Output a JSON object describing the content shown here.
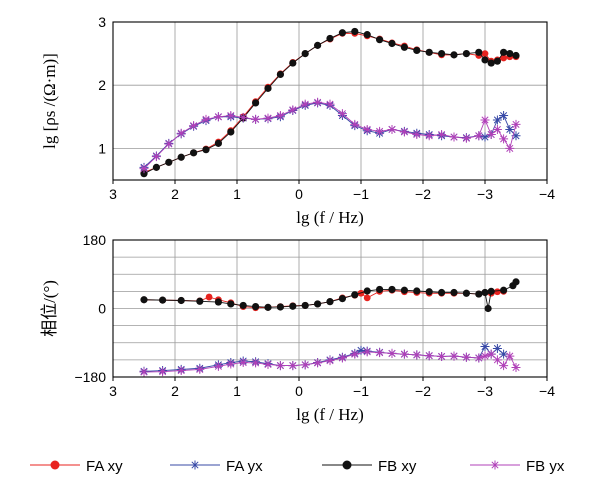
{
  "chart_data": [
    {
      "type": "line",
      "xlabel": "lg (f / Hz)",
      "ylabel": "lg [ρs /(Ω·m)]",
      "xlim": [
        3,
        -4
      ],
      "ylim": [
        0.5,
        3
      ],
      "xticks": [
        "3",
        "2",
        "1",
        "0",
        "−1",
        "−2",
        "−3",
        "−4"
      ],
      "yticks": [
        "1",
        "2",
        "3"
      ],
      "grid": true,
      "series": [
        {
          "name": "FA xy",
          "color": "#e8231f",
          "marker": "dot",
          "x": [
            2.5,
            2.3,
            2.1,
            1.9,
            1.7,
            1.5,
            1.3,
            1.1,
            0.9,
            0.7,
            0.5,
            0.3,
            0.1,
            -0.1,
            -0.3,
            -0.5,
            -0.7,
            -0.9,
            -1.1,
            -1.3,
            -1.5,
            -1.7,
            -1.9,
            -2.1,
            -2.3,
            -2.5,
            -2.7,
            -2.9,
            -3.0,
            -3.1,
            -3.2,
            -3.3,
            -3.4,
            -3.5
          ],
          "y": [
            0.62,
            0.7,
            0.78,
            0.86,
            0.93,
            0.99,
            1.1,
            1.28,
            1.5,
            1.74,
            1.97,
            2.18,
            2.36,
            2.5,
            2.63,
            2.73,
            2.82,
            2.82,
            2.78,
            2.73,
            2.67,
            2.62,
            2.56,
            2.52,
            2.48,
            2.48,
            2.5,
            2.47,
            2.5,
            2.38,
            2.4,
            2.43,
            2.45,
            2.45
          ]
        },
        {
          "name": "FA yx",
          "color": "#3748a6",
          "marker": "star",
          "x": [
            2.5,
            2.3,
            2.1,
            1.9,
            1.7,
            1.5,
            1.3,
            1.1,
            0.9,
            0.7,
            0.5,
            0.3,
            0.1,
            -0.1,
            -0.3,
            -0.5,
            -0.7,
            -0.9,
            -1.1,
            -1.3,
            -1.5,
            -1.7,
            -1.9,
            -2.1,
            -2.3,
            -2.5,
            -2.7,
            -2.9,
            -3.0,
            -3.1,
            -3.2,
            -3.3,
            -3.4,
            -3.5
          ],
          "y": [
            0.7,
            0.88,
            1.08,
            1.23,
            1.35,
            1.44,
            1.5,
            1.5,
            1.48,
            1.46,
            1.47,
            1.5,
            1.6,
            1.68,
            1.72,
            1.68,
            1.52,
            1.36,
            1.28,
            1.24,
            1.3,
            1.27,
            1.24,
            1.22,
            1.2,
            1.18,
            1.17,
            1.2,
            1.18,
            1.22,
            1.45,
            1.52,
            1.3,
            1.2
          ]
        },
        {
          "name": "FB xy",
          "color": "#111111",
          "marker": "dot",
          "x": [
            2.5,
            2.3,
            2.1,
            1.9,
            1.7,
            1.5,
            1.3,
            1.1,
            0.9,
            0.7,
            0.5,
            0.3,
            0.1,
            -0.1,
            -0.3,
            -0.5,
            -0.7,
            -0.9,
            -1.1,
            -1.3,
            -1.5,
            -1.7,
            -1.9,
            -2.1,
            -2.3,
            -2.5,
            -2.7,
            -2.9,
            -3.0,
            -3.1,
            -3.2,
            -3.3,
            -3.4,
            -3.5
          ],
          "y": [
            0.6,
            0.7,
            0.78,
            0.86,
            0.93,
            0.98,
            1.08,
            1.26,
            1.48,
            1.72,
            1.95,
            2.17,
            2.35,
            2.5,
            2.63,
            2.74,
            2.83,
            2.85,
            2.8,
            2.72,
            2.66,
            2.6,
            2.55,
            2.52,
            2.5,
            2.48,
            2.5,
            2.52,
            2.4,
            2.35,
            2.38,
            2.52,
            2.5,
            2.47
          ]
        },
        {
          "name": "FB yx",
          "color": "#b040b8",
          "marker": "star",
          "x": [
            2.5,
            2.3,
            2.1,
            1.9,
            1.7,
            1.5,
            1.3,
            1.1,
            0.9,
            0.7,
            0.5,
            0.3,
            0.1,
            -0.1,
            -0.3,
            -0.5,
            -0.7,
            -0.9,
            -1.1,
            -1.3,
            -1.5,
            -1.7,
            -1.9,
            -2.1,
            -2.3,
            -2.5,
            -2.7,
            -2.9,
            -3.0,
            -3.1,
            -3.2,
            -3.3,
            -3.4,
            -3.5
          ],
          "y": [
            0.68,
            0.87,
            1.07,
            1.24,
            1.36,
            1.46,
            1.5,
            1.52,
            1.49,
            1.46,
            1.48,
            1.52,
            1.61,
            1.7,
            1.73,
            1.7,
            1.55,
            1.38,
            1.3,
            1.27,
            1.3,
            1.26,
            1.22,
            1.2,
            1.22,
            1.18,
            1.16,
            1.2,
            1.45,
            1.22,
            1.3,
            1.15,
            1.0,
            1.38
          ]
        }
      ]
    },
    {
      "type": "line",
      "xlabel": "lg (f / Hz)",
      "ylabel": "相位/(°)",
      "xlim": [
        3,
        -4
      ],
      "ylim": [
        -180,
        180
      ],
      "xticks": [
        "3",
        "2",
        "1",
        "0",
        "−1",
        "−2",
        "−3",
        "−4"
      ],
      "yticks": [
        "−180",
        "0",
        "180"
      ],
      "grid": true,
      "series": [
        {
          "name": "FA xy",
          "color": "#e8231f",
          "marker": "dot",
          "x": [
            2.5,
            2.2,
            1.9,
            1.6,
            1.45,
            1.3,
            1.1,
            0.9,
            0.7,
            0.5,
            0.3,
            0.1,
            -0.1,
            -0.3,
            -0.5,
            -0.7,
            -0.9,
            -1.0,
            -1.1,
            -1.3,
            -1.5,
            -1.7,
            -1.9,
            -2.1,
            -2.3,
            -2.5,
            -2.7,
            -2.9,
            -3.0,
            -3.1,
            -3.2,
            -3.3
          ],
          "y": [
            23,
            22,
            21,
            20,
            30,
            23,
            15,
            5,
            2,
            3,
            5,
            7,
            8,
            12,
            18,
            28,
            35,
            40,
            28,
            45,
            48,
            44,
            42,
            40,
            40,
            40,
            40,
            38,
            42,
            40,
            44,
            45
          ]
        },
        {
          "name": "FA yx",
          "color": "#3748a6",
          "marker": "star",
          "x": [
            2.5,
            2.2,
            1.9,
            1.6,
            1.3,
            1.1,
            0.9,
            0.7,
            0.5,
            0.3,
            0.1,
            -0.1,
            -0.3,
            -0.5,
            -0.7,
            -0.9,
            -1.0,
            -1.1,
            -1.3,
            -1.5,
            -1.7,
            -1.9,
            -2.1,
            -2.3,
            -2.5,
            -2.7,
            -2.9,
            -3.0,
            -3.1,
            -3.2,
            -3.3
          ],
          "y": [
            -165,
            -163,
            -160,
            -157,
            -148,
            -142,
            -138,
            -140,
            -145,
            -150,
            -150,
            -148,
            -142,
            -135,
            -128,
            -118,
            -110,
            -112,
            -115,
            -118,
            -120,
            -122,
            -124,
            -126,
            -125,
            -128,
            -130,
            -100,
            -120,
            -105,
            -120
          ]
        },
        {
          "name": "FB xy",
          "color": "#111111",
          "marker": "dot",
          "x": [
            2.5,
            2.2,
            1.9,
            1.6,
            1.3,
            1.1,
            0.9,
            0.7,
            0.5,
            0.3,
            0.1,
            -0.1,
            -0.3,
            -0.5,
            -0.7,
            -0.9,
            -1.1,
            -1.3,
            -1.5,
            -1.7,
            -1.9,
            -2.1,
            -2.3,
            -2.5,
            -2.7,
            -2.9,
            -3.0,
            -3.05,
            -3.1,
            -3.3,
            -3.45,
            -3.5
          ],
          "y": [
            23,
            22,
            21,
            19,
            17,
            12,
            8,
            5,
            3,
            4,
            6,
            8,
            12,
            18,
            26,
            36,
            46,
            50,
            50,
            48,
            46,
            44,
            42,
            42,
            40,
            38,
            42,
            0,
            45,
            48,
            60,
            70
          ]
        },
        {
          "name": "FB yx",
          "color": "#b040b8",
          "marker": "star",
          "x": [
            2.5,
            2.2,
            1.9,
            1.6,
            1.3,
            1.1,
            0.9,
            0.7,
            0.5,
            0.3,
            0.1,
            -0.1,
            -0.3,
            -0.5,
            -0.7,
            -0.9,
            -1.1,
            -1.3,
            -1.5,
            -1.7,
            -1.9,
            -2.1,
            -2.3,
            -2.5,
            -2.7,
            -2.9,
            -3.0,
            -3.1,
            -3.2,
            -3.3,
            -3.4,
            -3.5
          ],
          "y": [
            -167,
            -166,
            -163,
            -160,
            -152,
            -146,
            -142,
            -143,
            -147,
            -150,
            -150,
            -148,
            -143,
            -137,
            -130,
            -120,
            -114,
            -116,
            -118,
            -120,
            -122,
            -124,
            -126,
            -125,
            -128,
            -130,
            -125,
            -120,
            -135,
            -150,
            -125,
            -155
          ]
        }
      ]
    }
  ],
  "legend": [
    {
      "label": "FA xy",
      "color": "#e8231f",
      "marker": "dot"
    },
    {
      "label": "FA yx",
      "color": "#3748a6",
      "marker": "star"
    },
    {
      "label": "FB xy",
      "color": "#111111",
      "marker": "dot"
    },
    {
      "label": "FB yx",
      "color": "#b040b8",
      "marker": "star"
    }
  ]
}
